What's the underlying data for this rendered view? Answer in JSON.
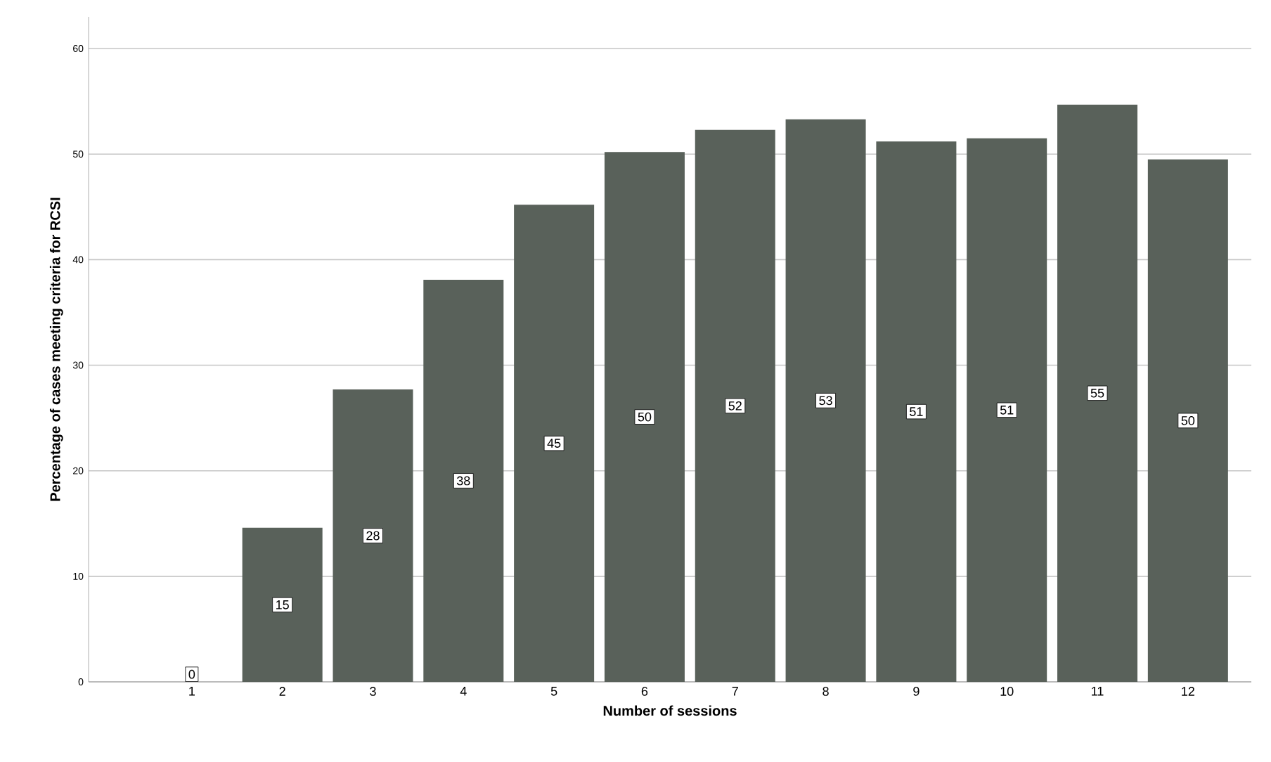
{
  "chart_data": {
    "type": "bar",
    "xlabel": "Number of sessions",
    "ylabel": "Percentage of cases meeting criteria for RCSI",
    "categories": [
      "1",
      "2",
      "3",
      "4",
      "5",
      "6",
      "7",
      "8",
      "9",
      "10",
      "11",
      "12"
    ],
    "values": [
      0,
      14.6,
      27.7,
      38.1,
      45.2,
      50.2,
      52.3,
      53.3,
      51.2,
      51.5,
      54.7,
      49.5
    ],
    "value_labels": [
      "0",
      "15",
      "28",
      "38",
      "45",
      "50",
      "52",
      "53",
      "51",
      "51",
      "55",
      "50"
    ],
    "color": "#59615a",
    "ylim": [
      0,
      63
    ],
    "yticks": [
      0,
      10,
      20,
      30,
      40,
      50,
      60
    ],
    "grid": "y"
  }
}
